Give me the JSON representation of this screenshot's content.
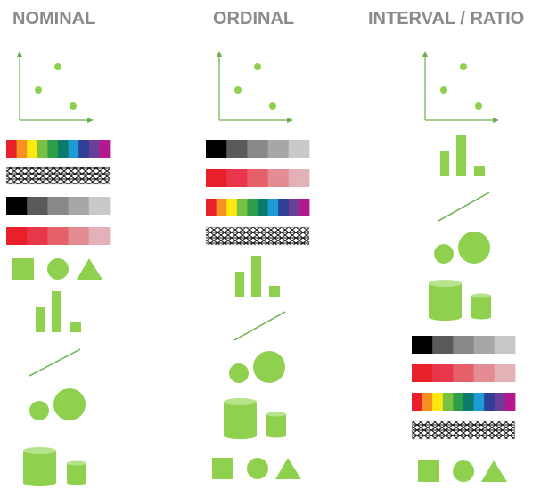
{
  "headings": {
    "nominal": "NOMINAL",
    "ordinal": "ORDINAL",
    "interval_ratio": "INTERVAL / RATIO"
  },
  "colors": {
    "heading": "#8a8a8a",
    "accent_green": "#8fd14f",
    "cylinder_top": "#b5e48c",
    "axis_green": "#6ab04c",
    "rainbow": [
      "#e8202a",
      "#f7901e",
      "#fde910",
      "#79c143",
      "#2d9f48",
      "#0c7b6c",
      "#1c9bd7",
      "#2e3f95",
      "#6a3f98",
      "#b5178f"
    ],
    "grays": [
      "#000000",
      "#5a5a5a",
      "#888888",
      "#a7a7a7",
      "#c9c9c9"
    ],
    "reds": [
      "#e8202a",
      "#e8364a",
      "#e6606a",
      "#e48c93",
      "#e2b2b6"
    ]
  },
  "icons": [
    "scatter-plot-icon",
    "color-bar-icon",
    "texture-bar-icon",
    "shape-icon",
    "bar-size-icon",
    "slope-line-icon",
    "circle-size-icon",
    "cylinder-volume-icon"
  ]
}
